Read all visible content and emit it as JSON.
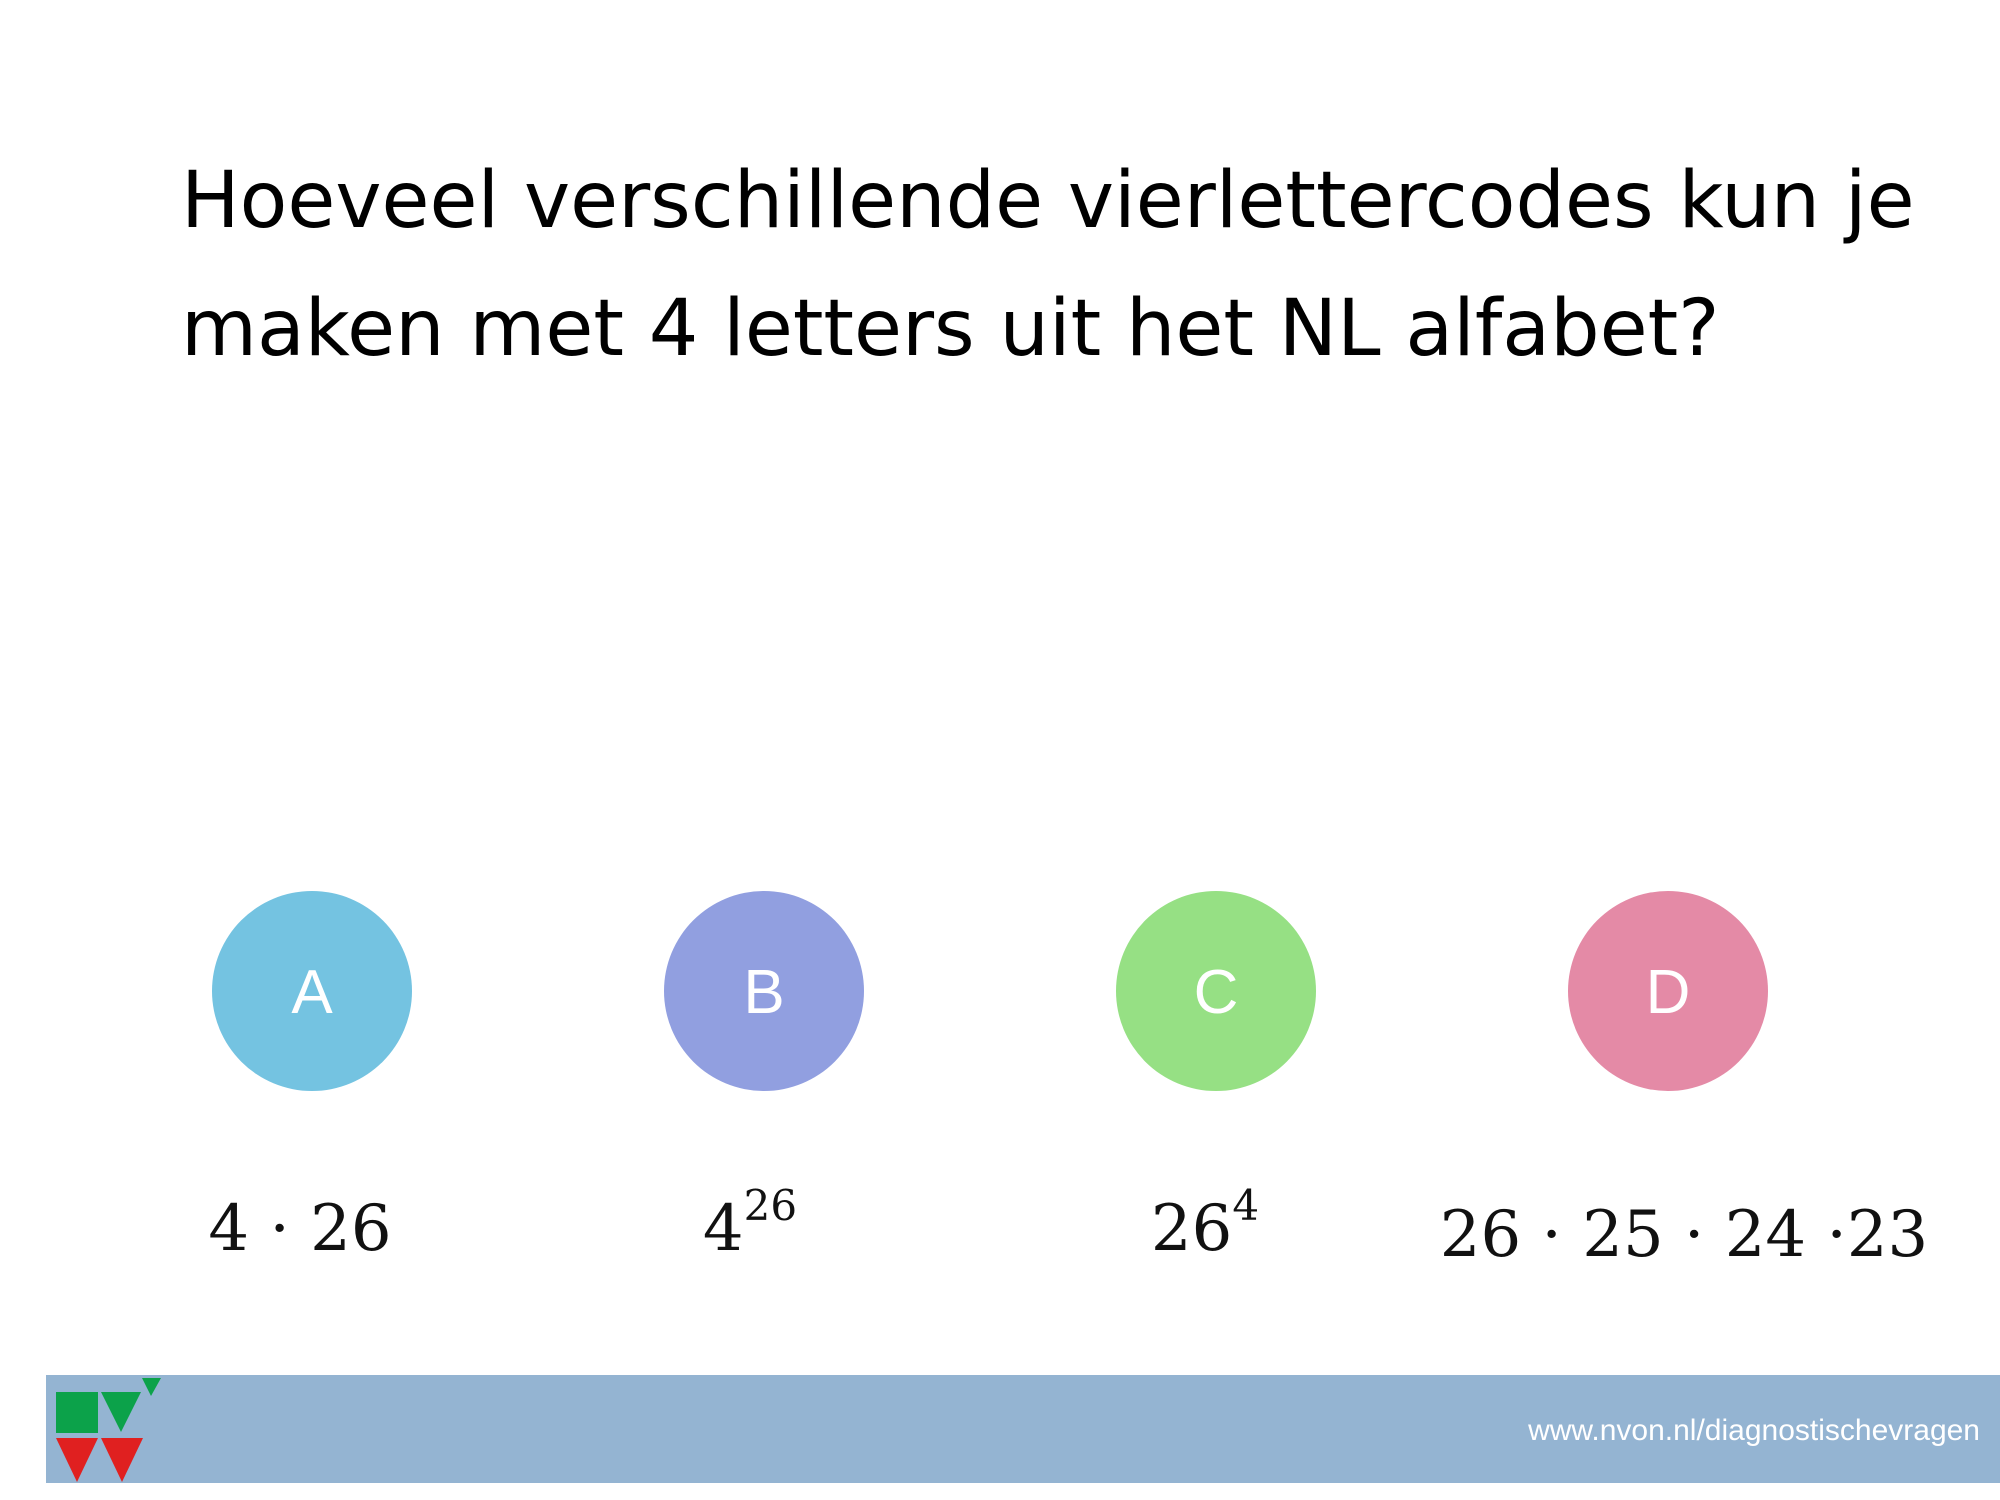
{
  "question": {
    "lines": [
      "Hoeveel verschillende vierlettercodes kun je",
      "maken met 4 letters uit het NL alfabet?"
    ]
  },
  "options": [
    {
      "letter": "A",
      "color": "#74c3e1",
      "expression": "4 · 26"
    },
    {
      "letter": "B",
      "color": "#919fe0",
      "base": "4",
      "exponent": "26"
    },
    {
      "letter": "C",
      "color": "#96e084",
      "base": "26",
      "exponent": "4"
    },
    {
      "letter": "D",
      "color": "#e48aa6",
      "expression": "26 · 25 · 24 ·23"
    }
  ],
  "footer": {
    "url": "www.nvon.nl/diagnostischevragen"
  }
}
